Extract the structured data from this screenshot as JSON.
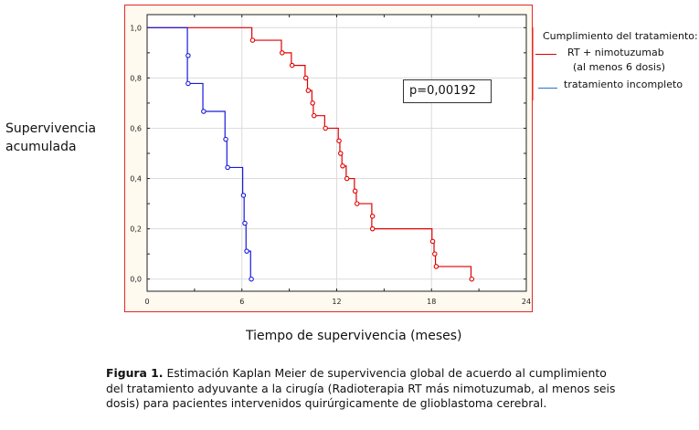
{
  "chart_data": {
    "type": "line",
    "subtype": "kaplan-meier-step",
    "ylabel": "Supervivencia acumulada",
    "xlabel": "Tiempo de supervivencia (meses)",
    "xlim": [
      0,
      24
    ],
    "ylim": [
      0,
      1
    ],
    "x_ticks": [
      0,
      6,
      12,
      18,
      24
    ],
    "x_tick_labels": [
      "0",
      "6",
      "12",
      "18",
      "24"
    ],
    "y_ticks": [
      0,
      0.2,
      0.4,
      0.6,
      0.8,
      1.0
    ],
    "y_tick_labels": [
      "0,0",
      "0,2",
      "0,4",
      "0,6",
      "0,8",
      "1,0"
    ],
    "grid": true,
    "legend_position": "right-outside",
    "annotation": "p=0,00192",
    "series": [
      {
        "name": "RT + nimotuzumab (al menos 6 dosis)",
        "color": "#e00000",
        "times": [
          6.63,
          8.5,
          9.13,
          10.0,
          10.15,
          10.43,
          10.52,
          11.24,
          12.1,
          12.2,
          12.33,
          12.6,
          13.12,
          13.24,
          14.22,
          14.22,
          18.03,
          18.16,
          18.25,
          20.5
        ],
        "survival": [
          0.95,
          0.9,
          0.85,
          0.8,
          0.75,
          0.7,
          0.65,
          0.6,
          0.55,
          0.5,
          0.45,
          0.4,
          0.35,
          0.3,
          0.25,
          0.2,
          0.15,
          0.1,
          0.05,
          0.0
        ]
      },
      {
        "name": "tratamiento incompleto",
        "color": "#1a1adc",
        "times": [
          2.55,
          2.55,
          3.53,
          4.93,
          5.05,
          6.05,
          6.14,
          6.26,
          6.55
        ],
        "survival": [
          0.889,
          0.778,
          0.667,
          0.556,
          0.444,
          0.333,
          0.222,
          0.111,
          0.0
        ]
      }
    ]
  },
  "labels": {
    "ylabel_line1": "Supervivencia",
    "ylabel_line2": "acumulada",
    "xlabel": "Tiempo de supervivencia (meses)",
    "pvalue": "p=0,00192"
  },
  "legend": {
    "title": "Cumplimiento del tratamiento:",
    "item1_line1": "RT + nimotuzumab",
    "item1_line2": "(al menos 6 dosis)",
    "item2": "tratamiento incompleto"
  },
  "caption": {
    "label": "Figura 1.",
    "text": " Estimación Kaplan Meier de supervivencia global de acuerdo al cumplimiento del tratamiento adyuvante a la cirugía (Radioterapia RT más nimotuzumab, al menos seis dosis) para pacientes intervenidos quirúrgicamente de glioblastoma cerebral."
  }
}
